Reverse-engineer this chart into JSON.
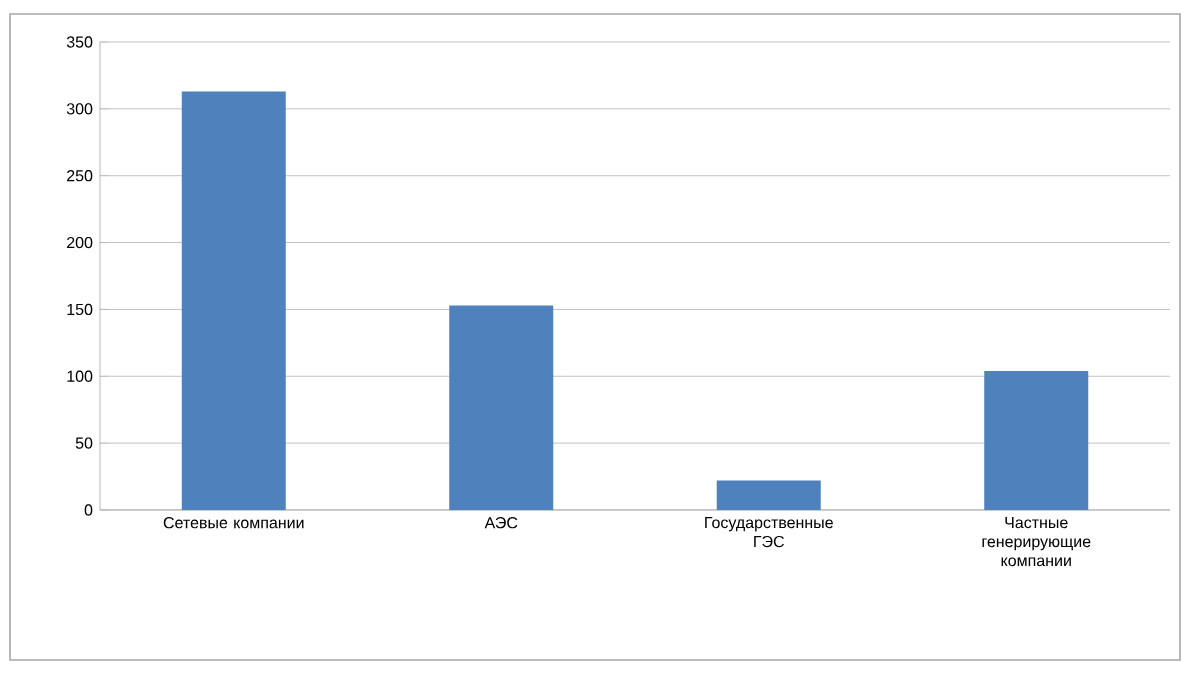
{
  "chart_data": {
    "type": "bar",
    "categories": [
      "Сетевые компании",
      "АЭС",
      "Государственные ГЭС",
      "Частные генерирующие компании"
    ],
    "values": [
      313,
      153,
      22,
      104
    ],
    "color": "#4f81bd",
    "ylim": [
      0,
      350
    ],
    "yticks": [
      0,
      50,
      100,
      150,
      200,
      250,
      300,
      350
    ],
    "grid": "y"
  }
}
